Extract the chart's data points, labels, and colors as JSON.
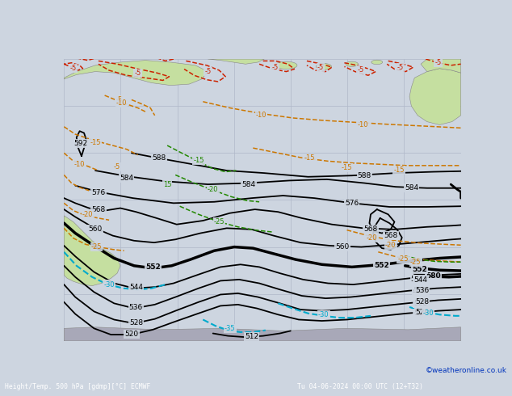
{
  "title": "Height/Temp. 500 hPa [gdmp][°C] ECMWF",
  "bottom_label": "Height/Temp. 500 hPa [gdmp][°C] ECMWF",
  "bottom_right": "Tu 04-06-2024 00:00 UTC (12+T32)",
  "credit": "©weatheronline.co.uk",
  "bg_color": "#cdd5e0",
  "land_color": "#c5dfa0",
  "ocean_color": "#cdd5e0",
  "grid_color": "#b0b8c8",
  "bar_color": "#1a1a5a",
  "bar_text_color": "#ffffff",
  "black": "#000000",
  "red": "#cc2200",
  "orange": "#cc7700",
  "green": "#228800",
  "cyan": "#00aacc",
  "blue_dark": "#0033cc"
}
